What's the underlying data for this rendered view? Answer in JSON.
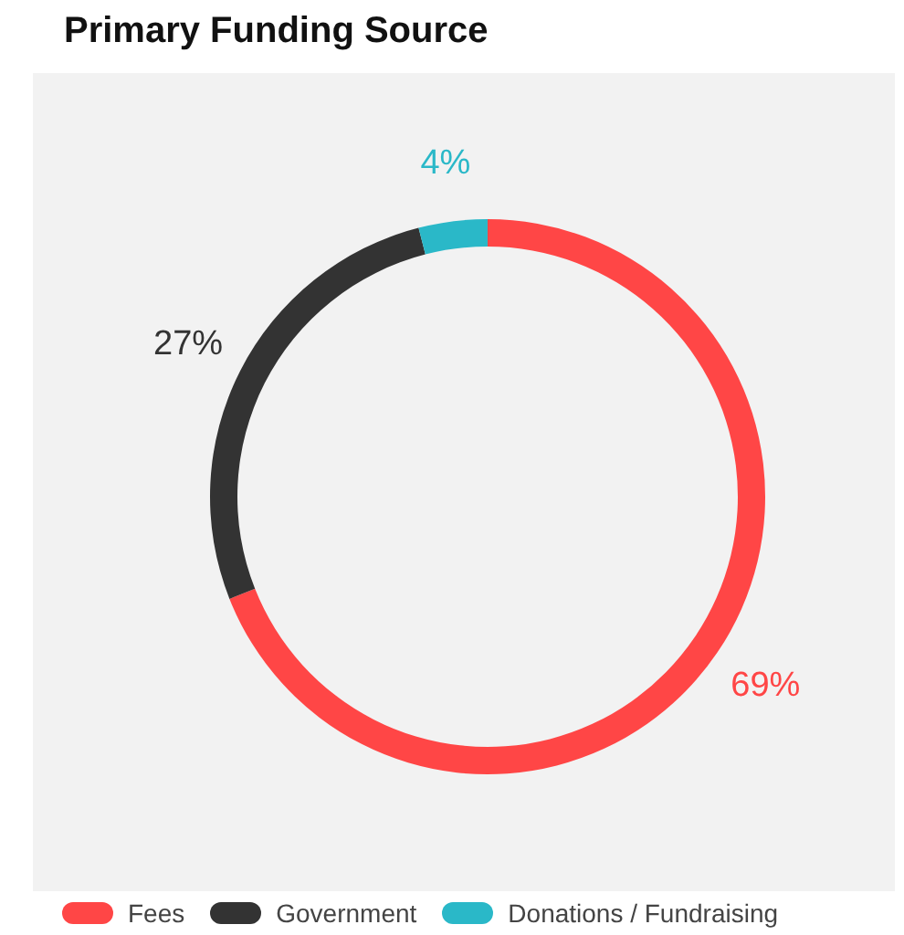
{
  "chart_data": {
    "type": "donut",
    "title": "Primary Funding Source",
    "categories": [
      "Fees",
      "Government",
      "Donations / Fundraising"
    ],
    "values": [
      69,
      27,
      4
    ],
    "colors": [
      "#ff4646",
      "#333333",
      "#2ab8c8"
    ],
    "value_labels": [
      "69%",
      "27%",
      "4%"
    ],
    "legend": "bottom"
  }
}
